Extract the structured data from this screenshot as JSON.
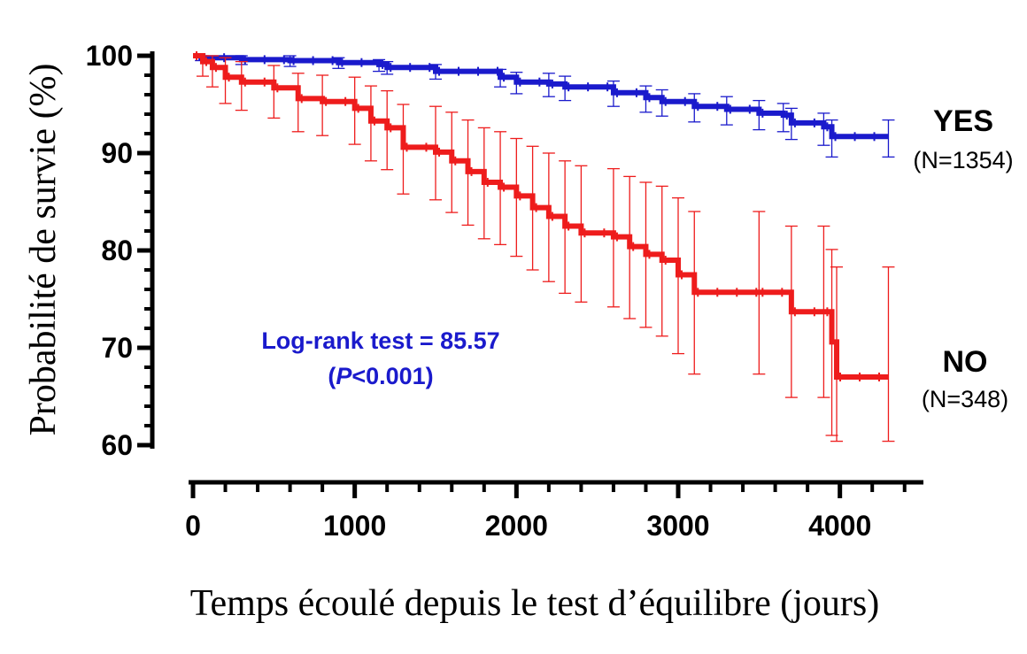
{
  "chart_data": {
    "type": "line",
    "title": "",
    "xlabel": "Temps écoulé depuis le test d’équilibre (jours)",
    "ylabel": "Probabilité de survie (%)",
    "xlim": [
      0,
      4500
    ],
    "ylim": [
      60,
      100
    ],
    "x_ticks": [
      "0",
      "1000",
      "2000",
      "3000",
      "4000"
    ],
    "y_ticks": [
      "60",
      "70",
      "80",
      "90",
      "100"
    ],
    "grid": false,
    "legend_position": "right",
    "series": [
      {
        "name": "YES",
        "n_label": "(N=1354)",
        "color": "#1a1acc",
        "x": [
          0,
          50,
          300,
          600,
          900,
          1150,
          1200,
          1500,
          1900,
          2000,
          2200,
          2300,
          2600,
          2800,
          2900,
          3100,
          3300,
          3500,
          3650,
          3700,
          3900,
          3950,
          4300
        ],
        "y": [
          100,
          99.8,
          99.6,
          99.5,
          99.3,
          99.1,
          98.8,
          98.4,
          97.8,
          97.3,
          97.1,
          96.8,
          96.2,
          95.7,
          95.3,
          94.8,
          94.5,
          94.1,
          93.9,
          93.1,
          92.7,
          91.7,
          91.7
        ],
        "error_upper": [
          100,
          100,
          100,
          100,
          99.8,
          99.6,
          99.4,
          99.1,
          98.6,
          98.3,
          98.2,
          97.9,
          97.4,
          96.9,
          96.5,
          96.1,
          95.8,
          95.4,
          95.1,
          94.6,
          94.1,
          93.4,
          93.4
        ],
        "error_lower": [
          100,
          99.5,
          99.1,
          98.9,
          98.7,
          98.4,
          98.1,
          97.6,
          96.8,
          96.1,
          95.8,
          95.4,
          94.8,
          94.2,
          93.8,
          93.2,
          92.9,
          92.4,
          92.2,
          91.4,
          90.8,
          89.6,
          89.6
        ]
      },
      {
        "name": "NO",
        "n_label": "(N=348)",
        "color": "#ee1c1c",
        "x": [
          0,
          60,
          120,
          200,
          300,
          500,
          650,
          800,
          1000,
          1100,
          1200,
          1300,
          1500,
          1600,
          1700,
          1800,
          1900,
          2000,
          2100,
          2200,
          2300,
          2400,
          2600,
          2700,
          2800,
          2900,
          3000,
          3100,
          3500,
          3700,
          3900,
          3950,
          3980,
          4300
        ],
        "y": [
          100,
          99.4,
          98.8,
          97.8,
          97.3,
          96.7,
          95.6,
          95.3,
          94.6,
          93.3,
          92.6,
          90.6,
          90.1,
          89.2,
          88.1,
          87.0,
          86.5,
          85.6,
          84.4,
          83.5,
          82.5,
          81.8,
          81.4,
          80.4,
          79.6,
          79.0,
          77.5,
          75.7,
          75.7,
          73.7,
          73.7,
          70.6,
          67.0,
          67.0
        ],
        "error_upper": [
          100,
          100,
          100,
          99.8,
          99.4,
          99.0,
          98.2,
          98.0,
          97.8,
          96.9,
          96.4,
          95.0,
          94.8,
          94.2,
          93.4,
          92.6,
          92.2,
          91.5,
          90.7,
          90.0,
          89.2,
          88.7,
          88.4,
          87.6,
          87.0,
          86.6,
          85.4,
          84.0,
          84.0,
          82.5,
          82.5,
          80.1,
          78.3,
          78.3
        ],
        "error_lower": [
          100,
          97.9,
          96.8,
          95.1,
          94.4,
          93.6,
          92.2,
          91.8,
          90.9,
          89.2,
          88.3,
          85.8,
          85.2,
          83.9,
          82.6,
          81.2,
          80.6,
          79.4,
          78.0,
          76.8,
          75.6,
          74.7,
          74.2,
          73.0,
          72.1,
          71.2,
          69.4,
          67.3,
          67.3,
          64.9,
          64.9,
          61.0,
          60.4,
          60.4
        ]
      }
    ],
    "annotations": [
      "Log-rank test = 85.57",
      "(",
      "P",
      "<0.001)"
    ]
  }
}
